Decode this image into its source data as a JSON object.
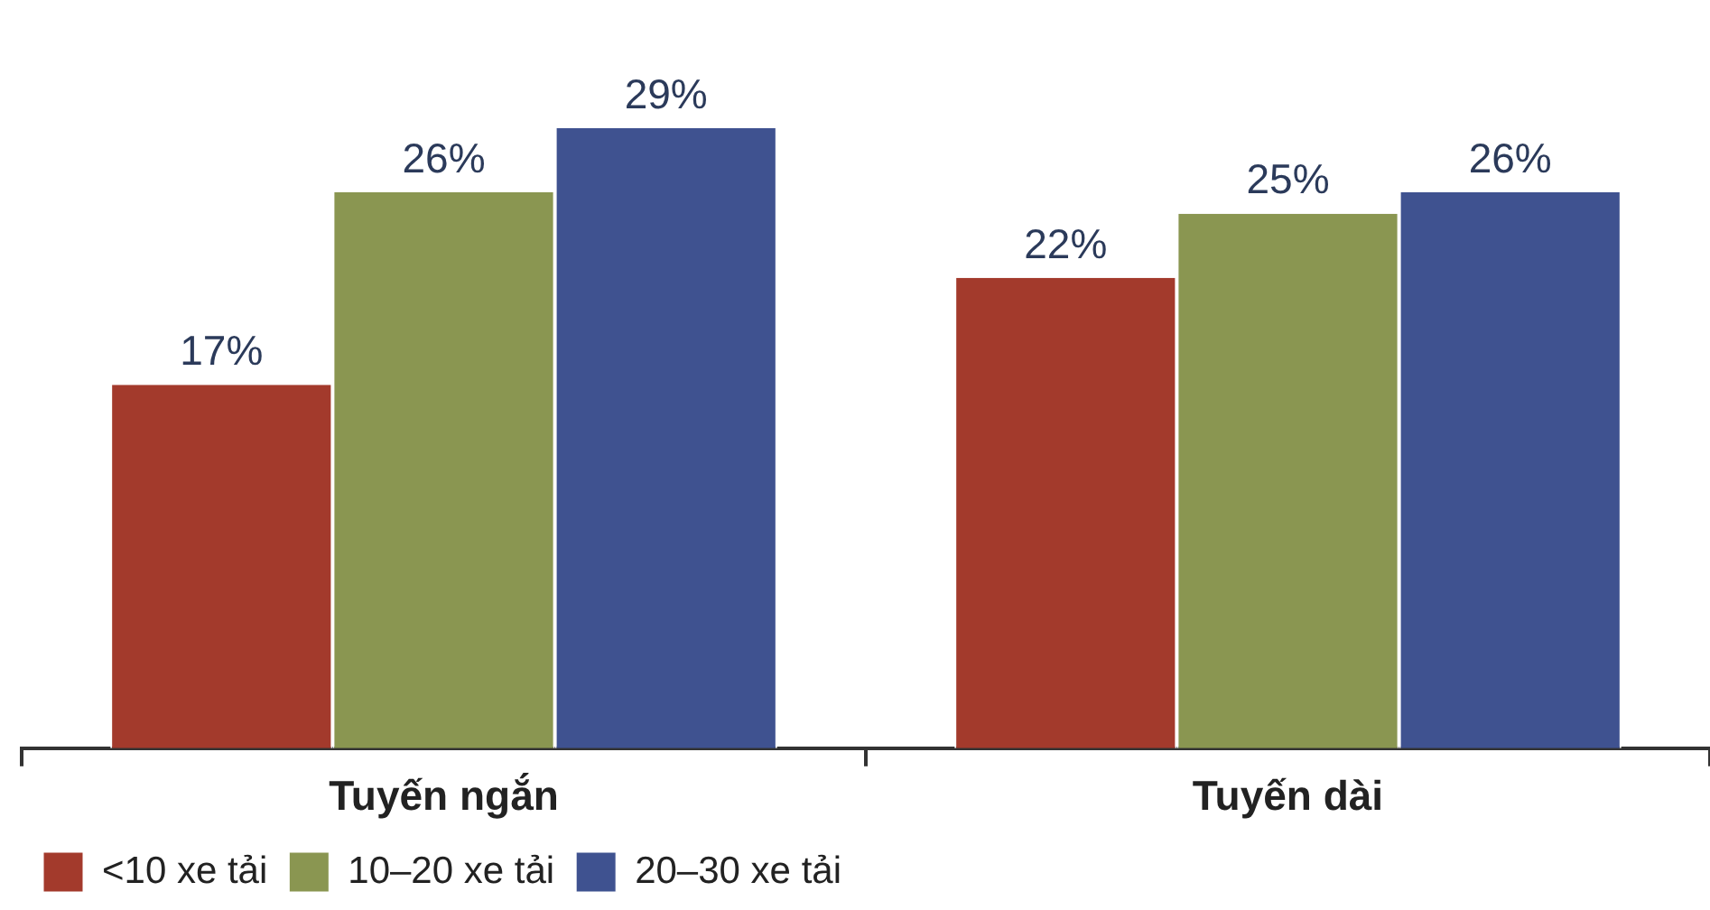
{
  "chart_data": {
    "type": "bar",
    "categories": [
      "Tuyến ngắn",
      "Tuyến dài"
    ],
    "series": [
      {
        "name": "<10 xe tải",
        "color": "#a33a2c",
        "values": [
          17,
          22
        ],
        "value_labels": [
          "17%",
          "22%"
        ]
      },
      {
        "name": "10–20 xe tải",
        "color": "#8a9651",
        "values": [
          26,
          25
        ],
        "value_labels": [
          "26%",
          "25%"
        ]
      },
      {
        "name": "20–30 xe tải",
        "color": "#3f5290",
        "values": [
          29,
          26
        ],
        "value_labels": [
          "29%",
          "26%"
        ]
      }
    ],
    "grid": false,
    "legend": "bottom left",
    "tick_labels": "x"
  }
}
